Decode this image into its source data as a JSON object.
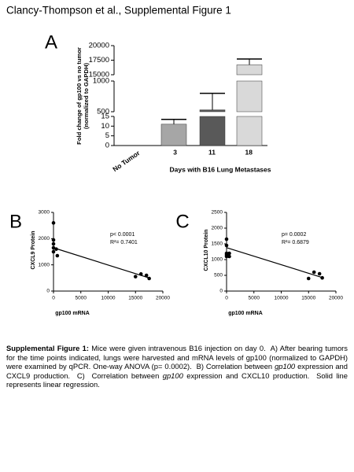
{
  "header": {
    "title": "Clancy-Thompson et al., Supplemental Figure 1"
  },
  "chart_data": [
    {
      "type": "bar",
      "panel": "A",
      "ylabel": [
        "Fold change of gp100 vs no tumor",
        "(normalized to GAPDH)"
      ],
      "xlabel": "Days with B16 Lung Metastases",
      "categories": [
        "No Tumor",
        "3",
        "11",
        "18"
      ],
      "values": [
        0,
        11,
        530,
        16700
      ],
      "errors": [
        0,
        2.5,
        270,
        1000
      ],
      "colors": [
        "#ffffff",
        "#a6a6a6",
        "#595959",
        "#d9d9d9"
      ],
      "y_segments": [
        {
          "ylim": [
            0,
            15
          ],
          "yticks": [
            0,
            5,
            10,
            15
          ]
        },
        {
          "ylim": [
            500,
            1000
          ],
          "yticks": [
            500,
            1000
          ]
        },
        {
          "ylim": [
            15000,
            20000
          ],
          "yticks": [
            15000,
            17500,
            20000
          ]
        }
      ]
    },
    {
      "type": "scatter",
      "panel": "B",
      "ylabel": "CXCL9 Protein",
      "xlabel": "gp100 mRNA",
      "xlim": [
        0,
        20000
      ],
      "xticks": [
        0,
        5000,
        10000,
        15000,
        20000
      ],
      "ylim": [
        0,
        3000
      ],
      "yticks": [
        0,
        1000,
        2000,
        3000
      ],
      "points": {
        "x": [
          0,
          0,
          0,
          0,
          0,
          500,
          700,
          15000,
          16000,
          17000,
          17500
        ],
        "y": [
          2600,
          1950,
          1800,
          1650,
          1500,
          1600,
          1350,
          550,
          650,
          600,
          480
        ]
      },
      "fit": {
        "x": [
          0,
          17500
        ],
        "y": [
          1650,
          500
        ]
      },
      "annotations": [
        "p< 0.0001",
        "R²= 0.7401"
      ]
    },
    {
      "type": "scatter",
      "panel": "C",
      "ylabel": "CXCL10 Protein",
      "xlabel": "gp100 mRNA",
      "xlim": [
        0,
        20000
      ],
      "xticks": [
        0,
        5000,
        10000,
        15000,
        20000
      ],
      "ylim": [
        0,
        2500
      ],
      "yticks": [
        0,
        500,
        1000,
        1500,
        2000,
        2500
      ],
      "points": {
        "x": [
          0,
          0,
          0,
          0,
          0,
          500,
          500,
          15000,
          16000,
          17000,
          17500
        ],
        "y": [
          1650,
          1450,
          1200,
          1150,
          1100,
          1200,
          1100,
          400,
          600,
          550,
          420
        ]
      },
      "fit": {
        "x": [
          0,
          17500
        ],
        "y": [
          1380,
          430
        ]
      },
      "annotations": [
        "p= 0.0002",
        "R²= 0.6879"
      ]
    }
  ],
  "caption": {
    "runs": [
      {
        "text": "Supplemental Figure 1:",
        "style": "bold"
      },
      {
        "text": " Mice were given intravenous B16 injection on day 0.  A) After bearing tumors for the time points indicated, lungs were harvested and mRNA levels of gp100 (normalized to GAPDH) were examined by qPCR. One-way ANOVA (p= 0.0002).  B) Correlation between ",
        "style": "normal"
      },
      {
        "text": "gp100",
        "style": "italic"
      },
      {
        "text": " expression and CXCL9 production.  C)  Correlation between ",
        "style": "normal"
      },
      {
        "text": "gp100",
        "style": "italic"
      },
      {
        "text": " expression and CXCL10 production.  Solid line represents linear regression.",
        "style": "normal"
      }
    ]
  }
}
